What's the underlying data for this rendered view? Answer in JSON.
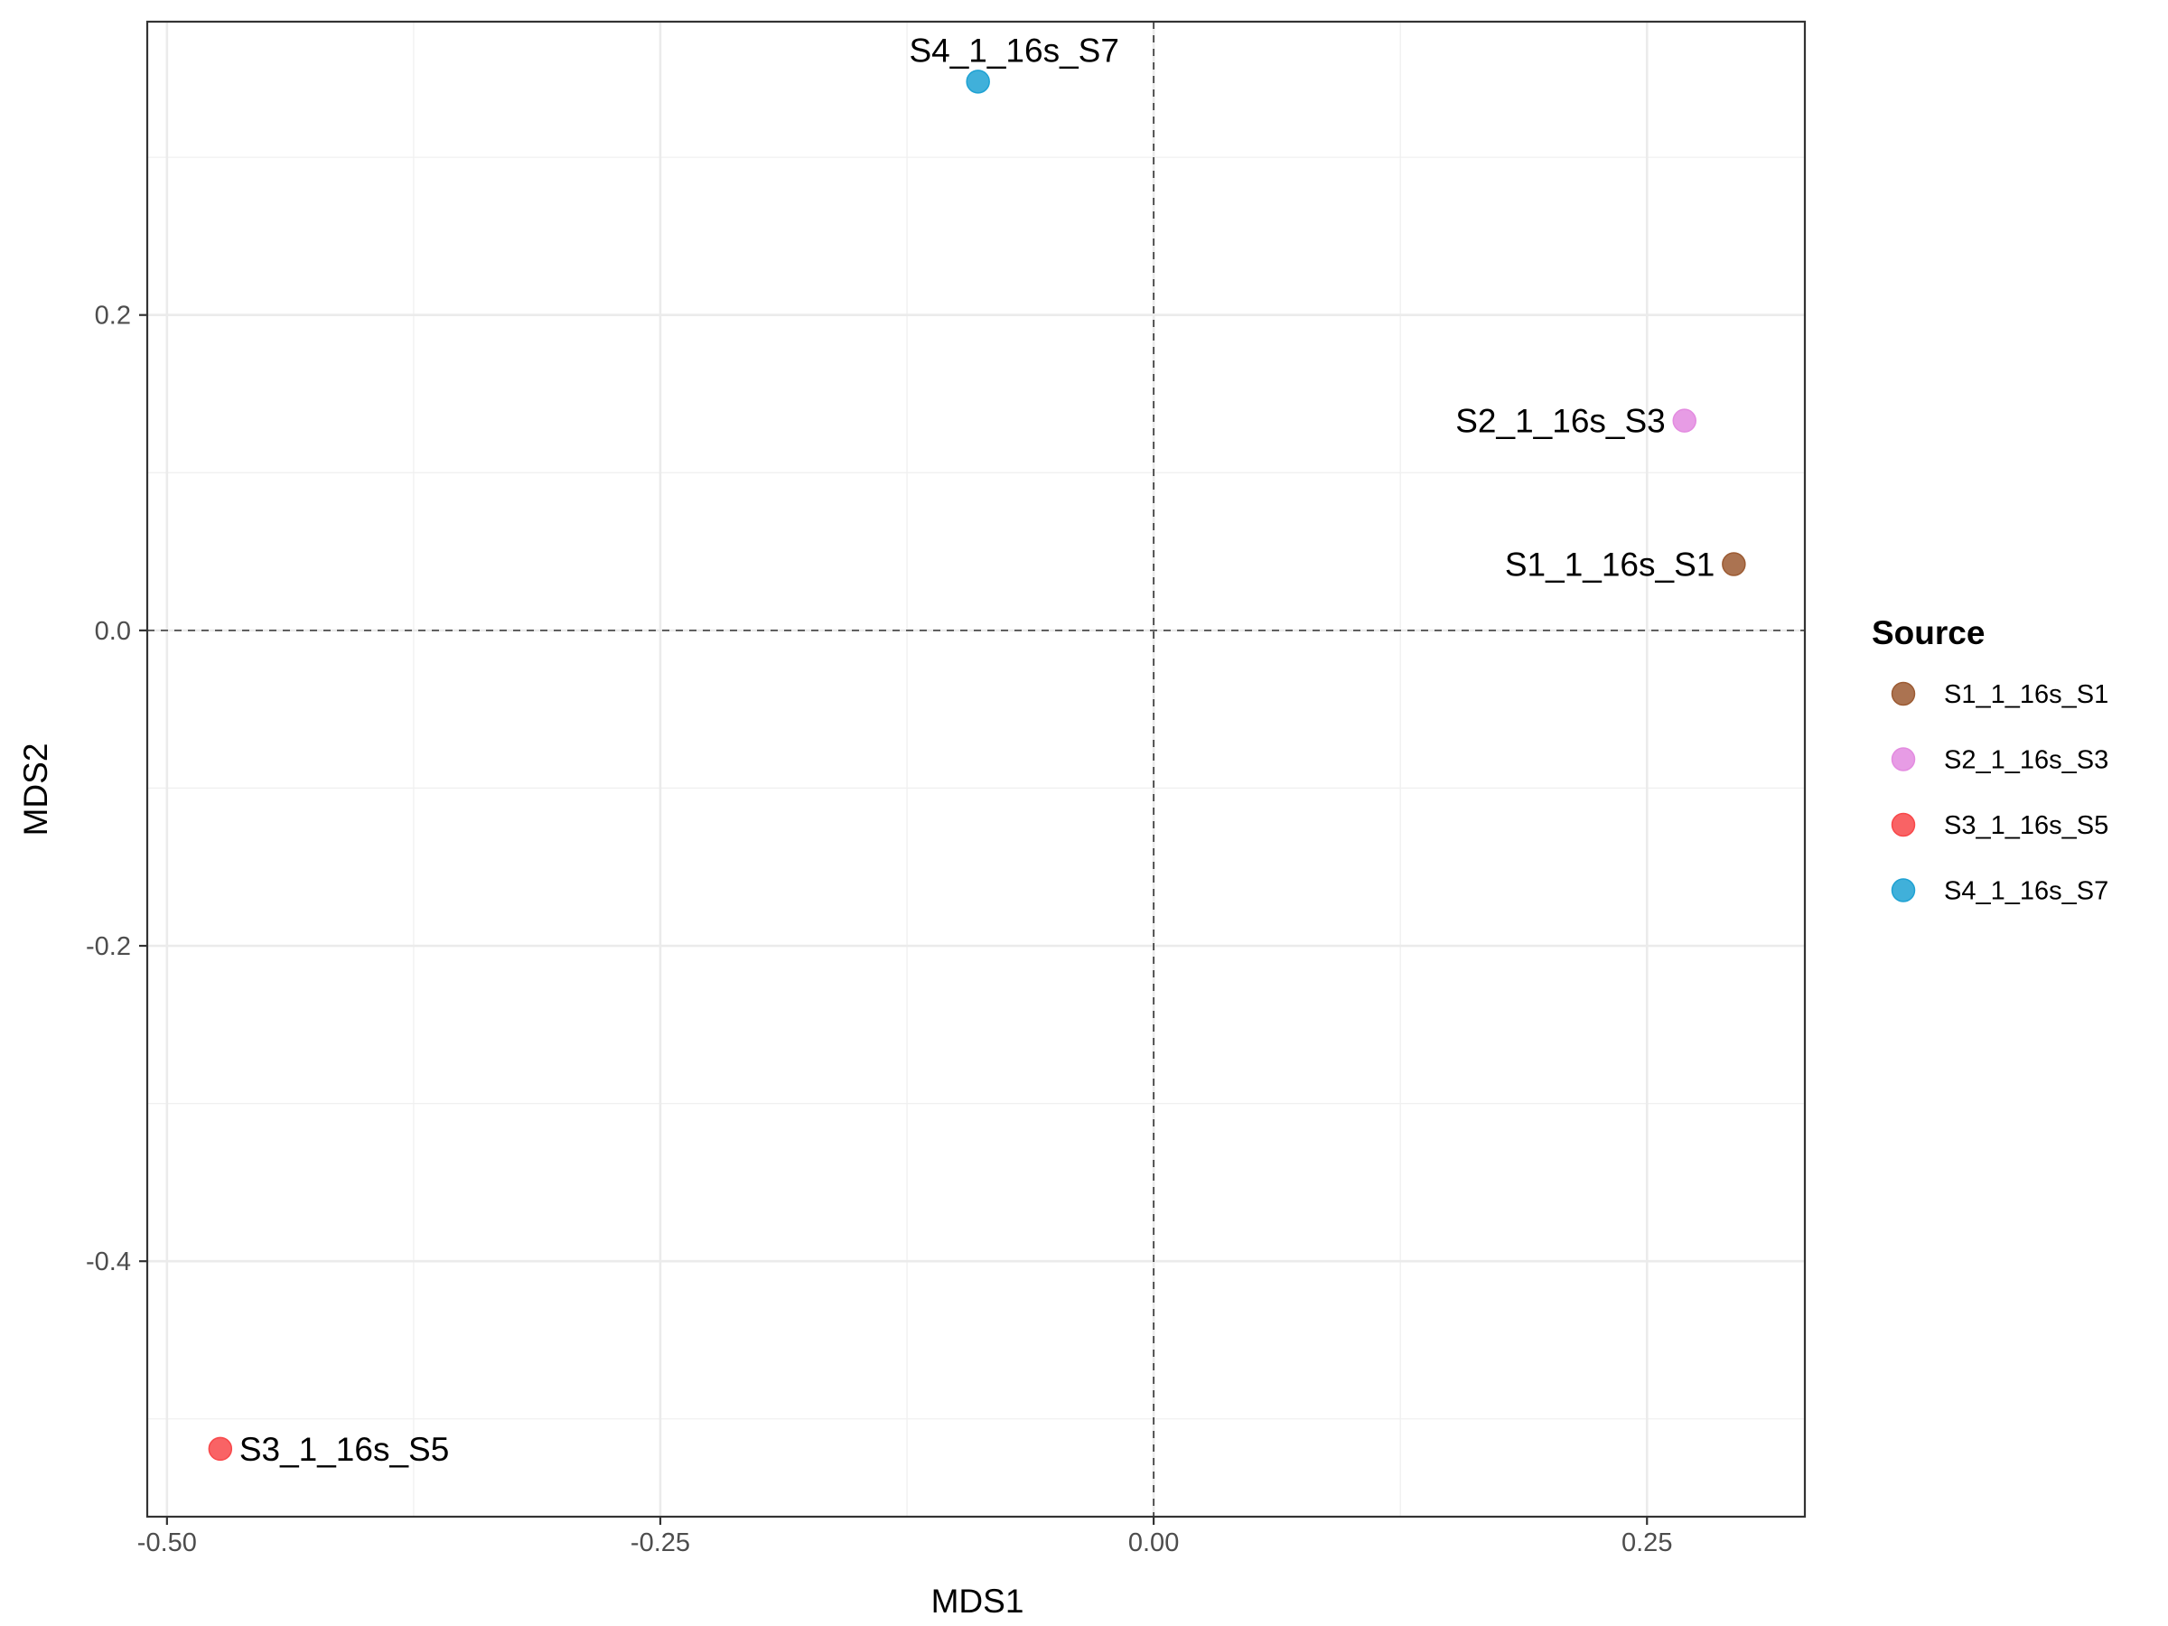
{
  "chart_data": {
    "type": "scatter",
    "title": "",
    "xlabel": "MDS1",
    "ylabel": "MDS2",
    "xlim": [
      -0.51,
      0.33
    ],
    "ylim": [
      -0.562,
      0.386
    ],
    "x_ticks": [
      -0.5,
      -0.25,
      0.0,
      0.25
    ],
    "x_tick_labels": [
      "-0.50",
      "-0.25",
      "0.00",
      "0.25"
    ],
    "y_ticks": [
      -0.4,
      -0.2,
      0.0,
      0.2
    ],
    "y_tick_labels": [
      "-0.4",
      "-0.2",
      "0.0",
      "0.2"
    ],
    "grid": true,
    "reference_lines": {
      "x": 0,
      "y": 0,
      "style": "dashed"
    },
    "legend": {
      "title": "Source",
      "position": "right"
    },
    "points": [
      {
        "name": "S1_1_16s_S1",
        "x": 0.294,
        "y": 0.042,
        "color": "#9C5B33",
        "label_side": "left"
      },
      {
        "name": "S2_1_16s_S3",
        "x": 0.269,
        "y": 0.133,
        "color": "#E38BE0",
        "label_side": "left"
      },
      {
        "name": "S3_1_16s_S5",
        "x": -0.473,
        "y": -0.519,
        "color": "#F8484A",
        "label_side": "right"
      },
      {
        "name": "S4_1_16s_S7",
        "x": -0.089,
        "y": 0.348,
        "color": "#1FA2D3",
        "label_side": "top"
      }
    ]
  }
}
